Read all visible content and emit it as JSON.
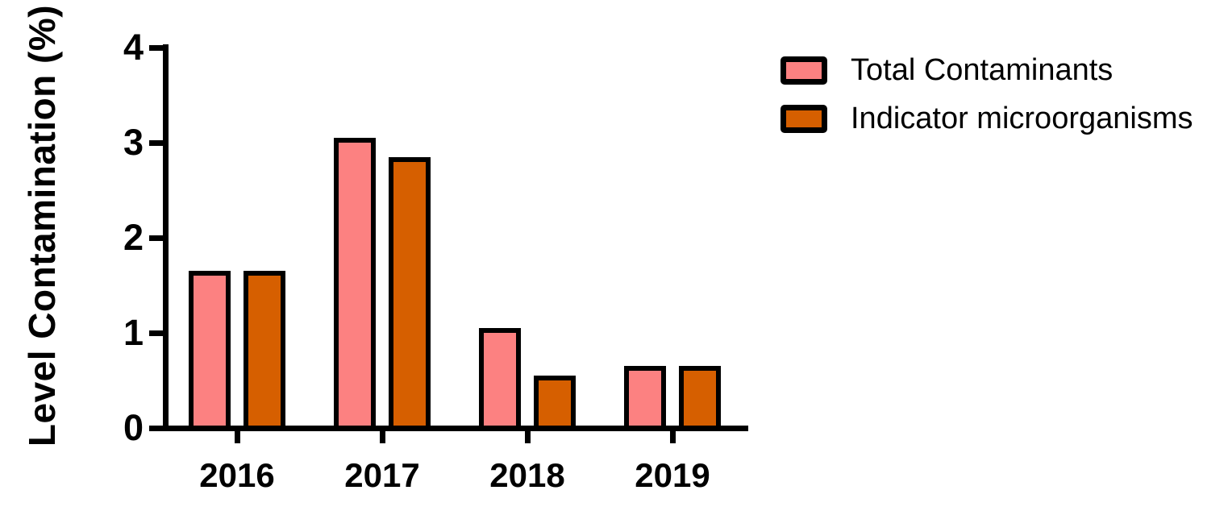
{
  "figure": {
    "background_color": "#FFFFFF",
    "axis_color": "#000000"
  },
  "chart_data": {
    "type": "bar",
    "title": "",
    "xlabel": "",
    "ylabel": "Level Contamination (%)",
    "categories": [
      "2016",
      "2017",
      "2018",
      "2019"
    ],
    "series": [
      {
        "name": "Total Contaminants",
        "color": "#FC8181",
        "values": [
          1.6,
          3.0,
          1.0,
          0.6
        ]
      },
      {
        "name": "Indicator microorganisms",
        "color": "#D65F00",
        "values": [
          1.6,
          2.8,
          0.5,
          0.6
        ]
      }
    ],
    "ylim": [
      0,
      4
    ],
    "yticks": [
      "0",
      "1",
      "2",
      "3",
      "4"
    ],
    "grid": false,
    "legend_position": "top-right",
    "bar_border_color": "#000000"
  }
}
